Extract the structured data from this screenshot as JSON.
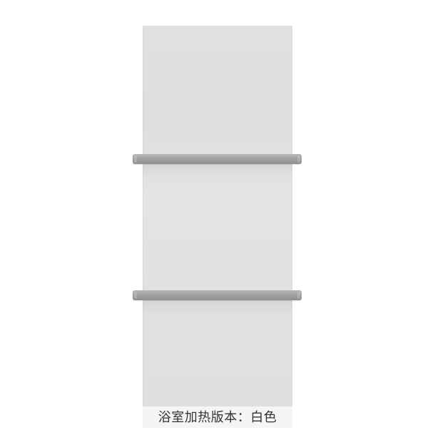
{
  "caption": {
    "text": "浴室加热版本：白色"
  },
  "colors": {
    "panel": "#e0e0e0",
    "towel_bar": "#9e9e9e",
    "caption_background": "#f5f5f5",
    "caption_text": "#333333"
  }
}
